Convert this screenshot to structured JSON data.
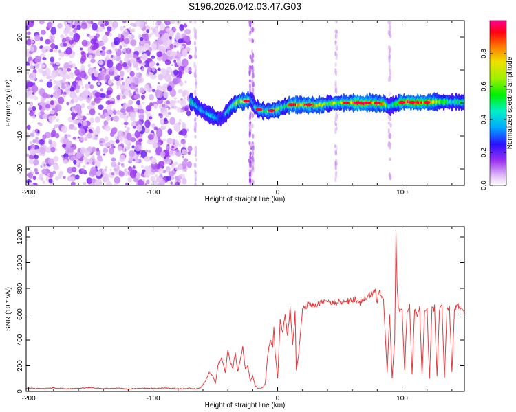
{
  "title": "S196.2026.042.03.47.G03",
  "chart_data": [
    {
      "type": "heatmap",
      "xlabel": "Height of straight line (km)",
      "ylabel": "Frequency (Hz)",
      "xlim": [
        -202,
        150
      ],
      "ylim": [
        -25,
        25
      ],
      "xticks": [
        -200,
        -100,
        0,
        100
      ],
      "yticks": [
        -20,
        -10,
        0,
        10,
        20
      ],
      "colorbar": {
        "label": "Normalized spectral amplitude",
        "range": [
          0,
          1
        ],
        "ticks": [
          0.0,
          0.2,
          0.4,
          0.6,
          0.8
        ]
      },
      "ridge": {
        "x": [
          -70,
          -65,
          -60,
          -55,
          -50,
          -45,
          -42,
          -38,
          -35,
          -32,
          -28,
          -25,
          -22,
          -20,
          -18,
          -15,
          -10,
          -5,
          0,
          5,
          10,
          20,
          30,
          40,
          50,
          60,
          70,
          80,
          85,
          90,
          95,
          100,
          110,
          120,
          130,
          140,
          150
        ],
        "y": [
          0.5,
          -1.0,
          -2.5,
          -3.5,
          -4.5,
          -4.8,
          -3.5,
          -1.5,
          -0.5,
          0.2,
          0.5,
          0.8,
          1.0,
          0.5,
          -1.5,
          -2.0,
          -2.5,
          -2.3,
          -2.0,
          -1.2,
          -0.5,
          -0.5,
          -0.8,
          -0.3,
          0.0,
          0.0,
          0.0,
          0.0,
          -0.2,
          -1.0,
          -0.2,
          0.2,
          0.2,
          0.2,
          0.3,
          0.3,
          0.3
        ],
        "amplitude": [
          0.5,
          0.4,
          0.35,
          0.45,
          0.4,
          0.3,
          0.35,
          0.5,
          0.6,
          0.7,
          0.95,
          0.8,
          0.5,
          0.3,
          0.45,
          0.6,
          0.55,
          0.7,
          0.75,
          0.5,
          0.85,
          0.9,
          0.8,
          0.6,
          0.7,
          0.85,
          0.95,
          0.9,
          0.8,
          0.4,
          0.65,
          0.95,
          0.9,
          0.85,
          0.6,
          0.5,
          0.5
        ]
      }
    },
    {
      "type": "line",
      "xlabel": "Height of straight line (km)",
      "ylabel": "SNR (10 * v/v)",
      "xlim": [
        -202,
        150
      ],
      "ylim": [
        0,
        1280
      ],
      "xticks": [
        -200,
        -100,
        0,
        100
      ],
      "yticks": [
        0,
        200,
        400,
        600,
        800,
        1000,
        1200
      ],
      "series": [
        {
          "name": "SNR",
          "color": "#e8383b",
          "x": [
            -202,
            -190,
            -180,
            -170,
            -160,
            -150,
            -140,
            -130,
            -120,
            -110,
            -100,
            -90,
            -80,
            -70,
            -65,
            -62,
            -58,
            -55,
            -52,
            -50,
            -48,
            -45,
            -42,
            -40,
            -38,
            -36,
            -34,
            -32,
            -30,
            -28,
            -26,
            -24,
            -22,
            -20,
            -18,
            -15,
            -12,
            -10,
            -8,
            -6,
            -4,
            -3,
            -2,
            0,
            2,
            4,
            6,
            8,
            10,
            12,
            14,
            15,
            17,
            20,
            25,
            30,
            35,
            40,
            45,
            50,
            55,
            60,
            65,
            70,
            75,
            78,
            80,
            82,
            85,
            88,
            90,
            92,
            94,
            95,
            96,
            97,
            98,
            100,
            102,
            104,
            106,
            108,
            110,
            112,
            114,
            116,
            118,
            120,
            122,
            124,
            126,
            128,
            130,
            132,
            134,
            136,
            138,
            140,
            142,
            145,
            148,
            150
          ],
          "y": [
            25,
            22,
            28,
            20,
            24,
            30,
            22,
            26,
            20,
            25,
            23,
            27,
            21,
            24,
            20,
            30,
            80,
            150,
            120,
            60,
            200,
            260,
            150,
            320,
            230,
            180,
            300,
            150,
            250,
            340,
            170,
            200,
            80,
            120,
            40,
            20,
            30,
            60,
            280,
            400,
            350,
            500,
            300,
            100,
            550,
            450,
            600,
            420,
            650,
            350,
            620,
            160,
            300,
            640,
            680,
            660,
            690,
            700,
            680,
            700,
            690,
            710,
            700,
            720,
            750,
            800,
            700,
            780,
            720,
            150,
            600,
            100,
            400,
            1250,
            800,
            650,
            620,
            640,
            160,
            620,
            650,
            130,
            640,
            600,
            650,
            120,
            620,
            660,
            100,
            640,
            650,
            120,
            630,
            660,
            110,
            640,
            650,
            150,
            630,
            680,
            640,
            600
          ]
        }
      ]
    }
  ]
}
